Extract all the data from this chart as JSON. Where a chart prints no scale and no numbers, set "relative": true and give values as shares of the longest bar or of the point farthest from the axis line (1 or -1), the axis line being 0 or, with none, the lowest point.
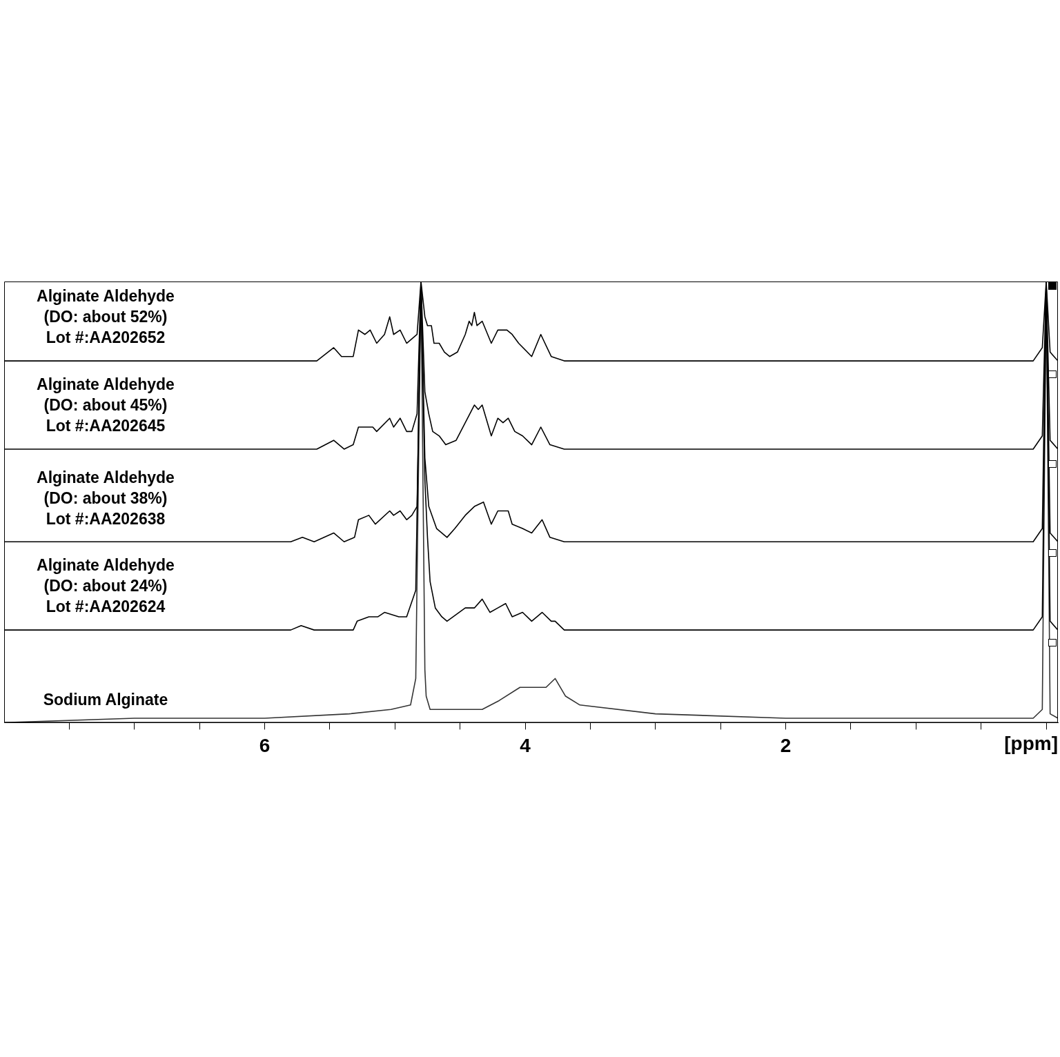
{
  "chart_data": {
    "type": "line",
    "relative": true,
    "xlabel": "[ppm]",
    "xlim": [
      8,
      -0.09
    ],
    "xticks": [
      {
        "value": 7.5,
        "label": null
      },
      {
        "value": 7,
        "label": null
      },
      {
        "value": 6.5,
        "label": null
      },
      6,
      {
        "value": 5.5,
        "label": null
      },
      {
        "value": 5,
        "label": null
      },
      {
        "value": 4.5,
        "label": null
      },
      4,
      {
        "value": 3.5,
        "label": null
      },
      {
        "value": 3,
        "label": null
      },
      {
        "value": 2.5,
        "label": null
      },
      2,
      {
        "value": 1.5,
        "label": null
      },
      {
        "value": 1,
        "label": null
      },
      {
        "value": 0.5,
        "label": null
      },
      {
        "value": 0,
        "label": null
      }
    ],
    "tick_labels": "x",
    "series": [
      {
        "name": "Alginate Aldehyde\n(DO: about 52%)\nLot #:AA202652",
        "color": "#000000",
        "x": [
          8.0,
          7.0,
          6.0,
          5.6,
          5.47,
          5.41,
          5.32,
          5.28,
          5.23,
          5.19,
          5.14,
          5.08,
          5.04,
          5.01,
          4.96,
          4.91,
          4.87,
          4.83,
          4.8,
          4.77,
          4.75,
          4.72,
          4.7,
          4.66,
          4.62,
          4.58,
          4.52,
          4.46,
          4.43,
          4.41,
          4.39,
          4.37,
          4.33,
          4.26,
          4.21,
          4.14,
          4.1,
          4.05,
          3.95,
          3.88,
          3.8,
          3.7,
          3.58,
          2.0,
          0.1,
          0.03,
          0,
          -0.03,
          -0.09
        ],
        "values": [
          0.82,
          0.82,
          0.82,
          0.82,
          0.85,
          0.83,
          0.83,
          0.89,
          0.88,
          0.89,
          0.86,
          0.88,
          0.92,
          0.88,
          0.89,
          0.86,
          0.87,
          0.88,
          1,
          0.92,
          0.9,
          0.9,
          0.86,
          0.86,
          0.84,
          0.83,
          0.84,
          0.88,
          0.91,
          0.9,
          0.93,
          0.9,
          0.91,
          0.86,
          0.89,
          0.89,
          0.88,
          0.86,
          0.83,
          0.88,
          0.83,
          0.82,
          0.82,
          0.82,
          0.82,
          0.85,
          1,
          0.84,
          0.82
        ]
      },
      {
        "name": "Alginate Aldehyde\n(DO: about 45%)\nLot #:AA202645",
        "color": "#000000",
        "x": [
          8.0,
          7.0,
          6.0,
          5.6,
          5.47,
          5.39,
          5.32,
          5.28,
          5.17,
          5.14,
          5.04,
          5.01,
          4.96,
          4.91,
          4.87,
          4.83,
          4.8,
          4.77,
          4.74,
          4.71,
          4.66,
          4.61,
          4.53,
          4.46,
          4.39,
          4.36,
          4.33,
          4.26,
          4.21,
          4.17,
          4.13,
          4.08,
          4.02,
          3.95,
          3.88,
          3.81,
          3.7,
          2.0,
          0.1,
          0.03,
          0,
          -0.03,
          -0.09
        ],
        "values": [
          0.62,
          0.62,
          0.62,
          0.62,
          0.64,
          0.62,
          0.63,
          0.67,
          0.67,
          0.66,
          0.69,
          0.67,
          0.69,
          0.66,
          0.66,
          0.7,
          1,
          0.75,
          0.7,
          0.66,
          0.65,
          0.63,
          0.64,
          0.68,
          0.72,
          0.71,
          0.72,
          0.65,
          0.69,
          0.68,
          0.69,
          0.66,
          0.65,
          0.63,
          0.67,
          0.63,
          0.62,
          0.62,
          0.62,
          0.65,
          1,
          0.64,
          0.62
        ]
      },
      {
        "name": "Alginate Aldehyde\n(DO: about 38%)\nLot #:AA202638",
        "color": "#000000",
        "x": [
          8.0,
          7.0,
          6.0,
          5.8,
          5.71,
          5.62,
          5.47,
          5.39,
          5.31,
          5.28,
          5.2,
          5.15,
          5.04,
          5.01,
          4.96,
          4.91,
          4.87,
          4.83,
          4.8,
          4.77,
          4.74,
          4.68,
          4.6,
          4.54,
          4.46,
          4.39,
          4.32,
          4.26,
          4.21,
          4.13,
          4.1,
          4.02,
          3.95,
          3.87,
          3.81,
          3.7,
          2.0,
          0.1,
          0.03,
          0,
          -0.03,
          -0.09
        ],
        "values": [
          0.41,
          0.41,
          0.41,
          0.41,
          0.42,
          0.41,
          0.43,
          0.41,
          0.42,
          0.46,
          0.47,
          0.45,
          0.48,
          0.47,
          0.48,
          0.46,
          0.47,
          0.49,
          1,
          0.6,
          0.49,
          0.44,
          0.42,
          0.44,
          0.47,
          0.49,
          0.5,
          0.45,
          0.48,
          0.48,
          0.45,
          0.44,
          0.43,
          0.46,
          0.42,
          0.41,
          0.41,
          0.41,
          0.44,
          1,
          0.43,
          0.41
        ]
      },
      {
        "name": "Alginate Aldehyde\n(DO: about 24%)\nLot #:AA202624",
        "color": "#000000",
        "x": [
          8.0,
          7.0,
          6.0,
          5.8,
          5.72,
          5.62,
          5.32,
          5.29,
          5.2,
          5.13,
          5.08,
          4.97,
          4.91,
          4.84,
          4.8,
          4.77,
          4.75,
          4.73,
          4.69,
          4.64,
          4.6,
          4.46,
          4.39,
          4.33,
          4.27,
          4.21,
          4.15,
          4.1,
          4.02,
          3.95,
          3.87,
          3.8,
          3.77,
          3.7,
          2.0,
          0.1,
          0.03,
          0,
          -0.03,
          -0.09
        ],
        "values": [
          0.21,
          0.21,
          0.21,
          0.21,
          0.22,
          0.21,
          0.21,
          0.23,
          0.24,
          0.24,
          0.25,
          0.24,
          0.24,
          0.3,
          1,
          0.55,
          0.42,
          0.32,
          0.26,
          0.24,
          0.23,
          0.26,
          0.26,
          0.28,
          0.25,
          0.26,
          0.27,
          0.24,
          0.25,
          0.23,
          0.25,
          0.23,
          0.23,
          0.21,
          0.21,
          0.21,
          0.24,
          1,
          0.23,
          0.21
        ]
      },
      {
        "name": "Sodium Alginate",
        "color": "#333333",
        "x": [
          8.0,
          7.0,
          6.0,
          5.35,
          5.03,
          4.88,
          4.84,
          4.8,
          4.77,
          4.76,
          4.73,
          4.6,
          4.46,
          4.33,
          4.2,
          4.04,
          3.95,
          3.84,
          3.77,
          3.69,
          3.58,
          3.0,
          2.0,
          0.1,
          0.03,
          0,
          -0.03,
          -0.09
        ],
        "values": [
          0,
          0.01,
          0.01,
          0.02,
          0.03,
          0.04,
          0.1,
          1,
          0.12,
          0.06,
          0.03,
          0.03,
          0.03,
          0.03,
          0.05,
          0.08,
          0.08,
          0.08,
          0.1,
          0.06,
          0.04,
          0.02,
          0.01,
          0.01,
          0.03,
          1,
          0.02,
          0.01
        ]
      }
    ]
  }
}
